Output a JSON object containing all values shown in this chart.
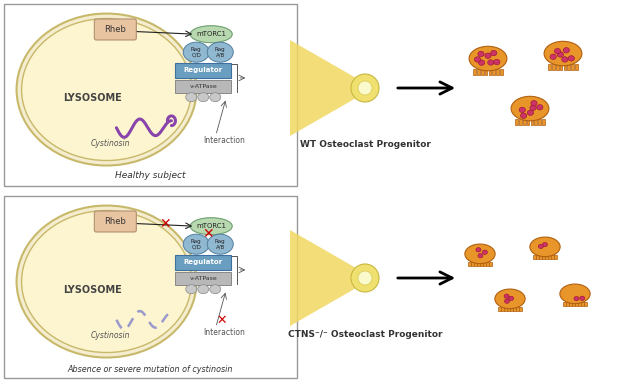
{
  "bg_color": "#ffffff",
  "lysosome_fill": "#fdf5d0",
  "lysosome_edge": "#c8b86a",
  "cell_outer_fill": "#f5edd0",
  "border_color": "#999999",
  "rheb_fill": "#e8c4a0",
  "rheb_text": "Rheb",
  "mtorc1_fill": "#b8d8b0",
  "mtorc1_text": "mTORC1",
  "rag_fill": "#90b8d0",
  "rag_cd_text": "Rag\nC/D",
  "rag_ab_text": "Rag\nA/B",
  "regulator_fill": "#6a9ec0",
  "regulator_text": "Regulator",
  "vatpase_fill": "#b8b8b8",
  "vatpase_text": "v-ATPase",
  "lysosome_text": "LYSOSOME",
  "cystinosin_text": "Cystinosin",
  "interaction_text": "Interaction",
  "healthy_label": "Healthy subject",
  "disease_label": "Absence or severe mutation of cystinosin",
  "wt_label": "WT Osteoclast Progenitor",
  "ctns_label": "CTNS⁻/⁻ Osteoclast Progenitor",
  "red_x_color": "#cc0000",
  "cystinosin_color_healthy": "#8844aa",
  "cystinosin_color_disease": "#9999cc",
  "osteoclast_body_color": "#e8952a",
  "osteoclast_nucleus_color": "#cc3366",
  "beam_color": "#f0d860",
  "progenitor_outer": "#f0e070",
  "progenitor_inner": "#fafacc"
}
